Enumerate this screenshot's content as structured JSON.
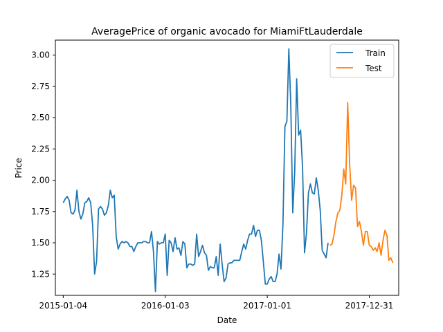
{
  "chart_data": {
    "type": "line",
    "title": "AveragePrice of organic avocado for MiamiFtLauderdale",
    "xlabel": "Date",
    "ylabel": "Price",
    "x_axis": "date",
    "xlim": [
      "2014-12-07",
      "2018-04-15"
    ],
    "ylim": [
      1.08,
      3.12
    ],
    "x_ticks": [
      "2015-01-04",
      "2016-01-03",
      "2017-01-01",
      "2017-12-31"
    ],
    "y_ticks": [
      1.25,
      1.5,
      1.75,
      2.0,
      2.25,
      2.5,
      2.75,
      3.0
    ],
    "y_tick_labels": [
      "1.25",
      "1.50",
      "1.75",
      "2.00",
      "2.25",
      "2.50",
      "2.75",
      "3.00"
    ],
    "grid": false,
    "legend": {
      "position": "top-right",
      "entries": [
        "Train",
        "Test"
      ]
    },
    "series": [
      {
        "name": "Train",
        "color": "#1f77b4",
        "points": [
          [
            "2015-01-04",
            1.82
          ],
          [
            "2015-01-11",
            1.85
          ],
          [
            "2015-01-18",
            1.87
          ],
          [
            "2015-01-25",
            1.84
          ],
          [
            "2015-02-01",
            1.74
          ],
          [
            "2015-02-08",
            1.73
          ],
          [
            "2015-02-15",
            1.76
          ],
          [
            "2015-02-22",
            1.92
          ],
          [
            "2015-03-01",
            1.75
          ],
          [
            "2015-03-08",
            1.69
          ],
          [
            "2015-03-15",
            1.73
          ],
          [
            "2015-03-22",
            1.82
          ],
          [
            "2015-03-29",
            1.83
          ],
          [
            "2015-04-05",
            1.86
          ],
          [
            "2015-04-12",
            1.82
          ],
          [
            "2015-04-19",
            1.64
          ],
          [
            "2015-04-26",
            1.25
          ],
          [
            "2015-05-03",
            1.35
          ],
          [
            "2015-05-10",
            1.77
          ],
          [
            "2015-05-17",
            1.79
          ],
          [
            "2015-05-24",
            1.77
          ],
          [
            "2015-05-31",
            1.72
          ],
          [
            "2015-06-07",
            1.74
          ],
          [
            "2015-06-14",
            1.8
          ],
          [
            "2015-06-21",
            1.92
          ],
          [
            "2015-06-28",
            1.86
          ],
          [
            "2015-07-05",
            1.88
          ],
          [
            "2015-07-12",
            1.55
          ],
          [
            "2015-07-19",
            1.45
          ],
          [
            "2015-07-26",
            1.49
          ],
          [
            "2015-08-02",
            1.51
          ],
          [
            "2015-08-09",
            1.5
          ],
          [
            "2015-08-16",
            1.51
          ],
          [
            "2015-08-23",
            1.5
          ],
          [
            "2015-08-30",
            1.47
          ],
          [
            "2015-09-06",
            1.47
          ],
          [
            "2015-09-13",
            1.43
          ],
          [
            "2015-09-20",
            1.47
          ],
          [
            "2015-09-27",
            1.5
          ],
          [
            "2015-10-04",
            1.5
          ],
          [
            "2015-10-11",
            1.5
          ],
          [
            "2015-10-18",
            1.51
          ],
          [
            "2015-10-25",
            1.51
          ],
          [
            "2015-11-01",
            1.5
          ],
          [
            "2015-11-08",
            1.5
          ],
          [
            "2015-11-15",
            1.59
          ],
          [
            "2015-11-22",
            1.43
          ],
          [
            "2015-11-29",
            1.11
          ],
          [
            "2015-12-06",
            1.51
          ],
          [
            "2015-12-13",
            1.49
          ],
          [
            "2015-12-20",
            1.5
          ],
          [
            "2015-12-27",
            1.5
          ],
          [
            "2016-01-03",
            1.57
          ],
          [
            "2016-01-10",
            1.24
          ],
          [
            "2016-01-17",
            1.52
          ],
          [
            "2016-01-24",
            1.5
          ],
          [
            "2016-01-31",
            1.43
          ],
          [
            "2016-02-07",
            1.54
          ],
          [
            "2016-02-14",
            1.45
          ],
          [
            "2016-02-21",
            1.46
          ],
          [
            "2016-02-28",
            1.4
          ],
          [
            "2016-03-06",
            1.51
          ],
          [
            "2016-03-13",
            1.49
          ],
          [
            "2016-03-20",
            1.3
          ],
          [
            "2016-03-27",
            1.33
          ],
          [
            "2016-04-03",
            1.33
          ],
          [
            "2016-04-10",
            1.32
          ],
          [
            "2016-04-17",
            1.33
          ],
          [
            "2016-04-24",
            1.57
          ],
          [
            "2016-05-01",
            1.39
          ],
          [
            "2016-05-08",
            1.43
          ],
          [
            "2016-05-15",
            1.48
          ],
          [
            "2016-05-22",
            1.42
          ],
          [
            "2016-05-29",
            1.4
          ],
          [
            "2016-06-05",
            1.28
          ],
          [
            "2016-06-12",
            1.31
          ],
          [
            "2016-06-19",
            1.3
          ],
          [
            "2016-06-26",
            1.3
          ],
          [
            "2016-07-03",
            1.39
          ],
          [
            "2016-07-10",
            1.24
          ],
          [
            "2016-07-17",
            1.49
          ],
          [
            "2016-07-24",
            1.33
          ],
          [
            "2016-07-31",
            1.19
          ],
          [
            "2016-08-07",
            1.22
          ],
          [
            "2016-08-14",
            1.33
          ],
          [
            "2016-08-21",
            1.34
          ],
          [
            "2016-08-28",
            1.34
          ],
          [
            "2016-09-04",
            1.36
          ],
          [
            "2016-09-11",
            1.36
          ],
          [
            "2016-09-18",
            1.36
          ],
          [
            "2016-09-25",
            1.36
          ],
          [
            "2016-10-02",
            1.43
          ],
          [
            "2016-10-09",
            1.49
          ],
          [
            "2016-10-16",
            1.45
          ],
          [
            "2016-10-23",
            1.52
          ],
          [
            "2016-10-30",
            1.57
          ],
          [
            "2016-11-06",
            1.57
          ],
          [
            "2016-11-13",
            1.64
          ],
          [
            "2016-11-20",
            1.55
          ],
          [
            "2016-11-27",
            1.6
          ],
          [
            "2016-12-04",
            1.6
          ],
          [
            "2016-12-11",
            1.52
          ],
          [
            "2016-12-18",
            1.35
          ],
          [
            "2016-12-25",
            1.17
          ],
          [
            "2017-01-01",
            1.17
          ],
          [
            "2017-01-08",
            1.21
          ],
          [
            "2017-01-15",
            1.23
          ],
          [
            "2017-01-22",
            1.19
          ],
          [
            "2017-01-29",
            1.19
          ],
          [
            "2017-02-05",
            1.25
          ],
          [
            "2017-02-12",
            1.41
          ],
          [
            "2017-02-19",
            1.29
          ],
          [
            "2017-02-26",
            1.65
          ],
          [
            "2017-03-05",
            2.43
          ],
          [
            "2017-03-12",
            2.47
          ],
          [
            "2017-03-19",
            3.05
          ],
          [
            "2017-03-26",
            2.6
          ],
          [
            "2017-04-02",
            1.74
          ],
          [
            "2017-04-09",
            2.07
          ],
          [
            "2017-04-16",
            2.81
          ],
          [
            "2017-04-23",
            2.36
          ],
          [
            "2017-04-30",
            2.4
          ],
          [
            "2017-05-07",
            2.1
          ],
          [
            "2017-05-14",
            1.42
          ],
          [
            "2017-05-21",
            1.58
          ],
          [
            "2017-05-28",
            1.9
          ],
          [
            "2017-06-04",
            1.97
          ],
          [
            "2017-06-11",
            1.9
          ],
          [
            "2017-06-18",
            1.89
          ],
          [
            "2017-06-25",
            2.02
          ],
          [
            "2017-07-02",
            1.92
          ],
          [
            "2017-07-09",
            1.76
          ],
          [
            "2017-07-16",
            1.44
          ],
          [
            "2017-07-23",
            1.41
          ],
          [
            "2017-07-30",
            1.38
          ],
          [
            "2017-08-06",
            1.5
          ]
        ]
      },
      {
        "name": "Test",
        "color": "#ff7f0e",
        "points": [
          [
            "2017-08-13",
            1.48
          ],
          [
            "2017-08-20",
            1.49
          ],
          [
            "2017-08-27",
            1.56
          ],
          [
            "2017-09-03",
            1.67
          ],
          [
            "2017-09-10",
            1.74
          ],
          [
            "2017-09-17",
            1.76
          ],
          [
            "2017-09-24",
            1.88
          ],
          [
            "2017-10-01",
            2.09
          ],
          [
            "2017-10-08",
            1.97
          ],
          [
            "2017-10-15",
            2.62
          ],
          [
            "2017-10-22",
            2.13
          ],
          [
            "2017-10-29",
            1.84
          ],
          [
            "2017-11-05",
            1.96
          ],
          [
            "2017-11-12",
            1.94
          ],
          [
            "2017-11-19",
            1.63
          ],
          [
            "2017-11-26",
            1.67
          ],
          [
            "2017-12-03",
            1.59
          ],
          [
            "2017-12-10",
            1.48
          ],
          [
            "2017-12-17",
            1.59
          ],
          [
            "2017-12-24",
            1.59
          ],
          [
            "2017-12-31",
            1.48
          ],
          [
            "2018-01-07",
            1.47
          ],
          [
            "2018-01-14",
            1.44
          ],
          [
            "2018-01-21",
            1.46
          ],
          [
            "2018-01-28",
            1.43
          ],
          [
            "2018-02-04",
            1.5
          ],
          [
            "2018-02-11",
            1.4
          ],
          [
            "2018-02-18",
            1.52
          ],
          [
            "2018-02-25",
            1.6
          ],
          [
            "2018-03-04",
            1.56
          ],
          [
            "2018-03-11",
            1.36
          ],
          [
            "2018-03-18",
            1.38
          ],
          [
            "2018-03-25",
            1.34
          ]
        ]
      }
    ]
  }
}
